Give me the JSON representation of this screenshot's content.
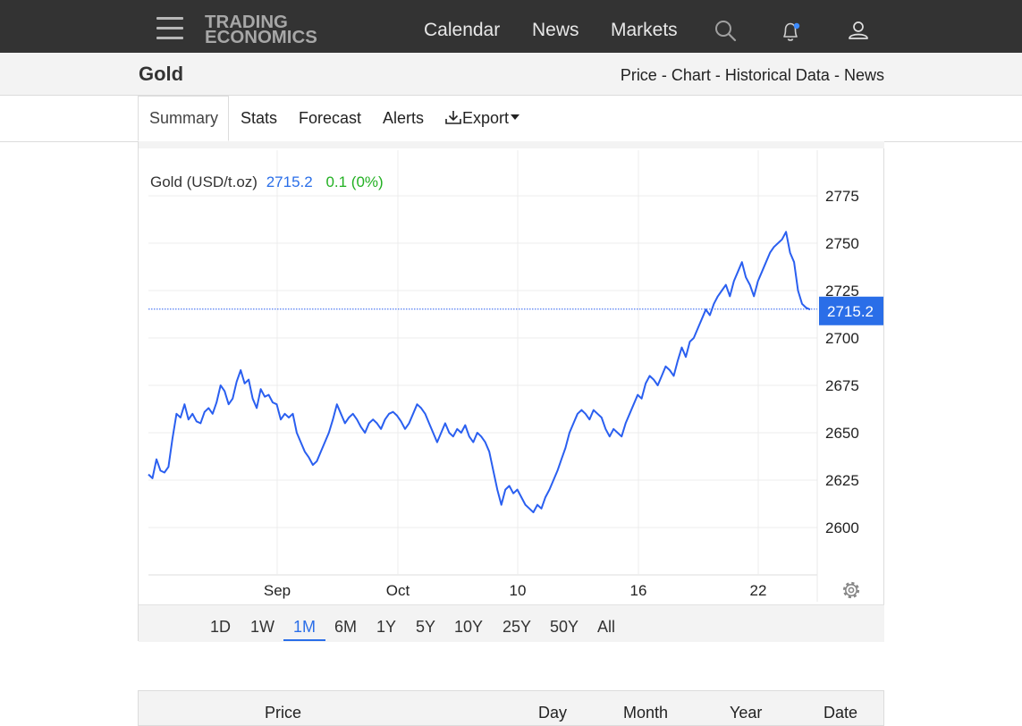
{
  "nav": {
    "logo_line1": "TRADING",
    "logo_line2": "ECONOMICS",
    "links": [
      "Calendar",
      "News",
      "Markets"
    ]
  },
  "titlebar": {
    "title": "Gold",
    "crumbs": [
      "Price",
      "Chart",
      "Historical Data",
      "News"
    ],
    "separator": "-"
  },
  "tabs": [
    "Summary",
    "Stats",
    "Forecast",
    "Alerts",
    "Export"
  ],
  "chart_header": {
    "instrument": "Gold (USD/t.oz)",
    "last": "2715.2",
    "change": "0.1 (0%)"
  },
  "ranges": [
    "1D",
    "1W",
    "1M",
    "6M",
    "1Y",
    "5Y",
    "10Y",
    "25Y",
    "50Y",
    "All"
  ],
  "active_range": "1M",
  "table_header": [
    "Price",
    "Day",
    "Month",
    "Year",
    "Date"
  ],
  "colors": {
    "line": "#2a5ff0",
    "positive": "#22b022",
    "accent": "#2a6ee8"
  },
  "chart_data": {
    "type": "line",
    "ylim": [
      2575,
      2800
    ],
    "yticks": [
      "2600",
      "2625",
      "2650",
      "2675",
      "2700",
      "2725",
      "2750",
      "2775"
    ],
    "xticks": [
      "Sep",
      "Oct",
      "10",
      "16",
      "22"
    ],
    "last_value": 2715.2,
    "last_label": "2715.2",
    "series": [
      {
        "values": [
          2628,
          2626,
          2636,
          2630,
          2629,
          2632,
          2647,
          2660,
          2658,
          2665,
          2657,
          2660,
          2656,
          2655,
          2661,
          2663,
          2660,
          2666,
          2675,
          2672,
          2665,
          2668,
          2677,
          2683,
          2676,
          2678,
          2668,
          2663,
          2673,
          2669,
          2670,
          2666,
          2665,
          2657,
          2660,
          2658,
          2660,
          2650,
          2645,
          2640,
          2637,
          2633,
          2635,
          2640,
          2645,
          2650,
          2657,
          2665,
          2660,
          2655,
          2658,
          2660,
          2657,
          2653,
          2650,
          2655,
          2657,
          2655,
          2652,
          2657,
          2660,
          2661,
          2659,
          2656,
          2652,
          2655,
          2660,
          2665,
          2663,
          2660,
          2655,
          2650,
          2645,
          2650,
          2655,
          2650,
          2648,
          2652,
          2650,
          2654,
          2648,
          2645,
          2650,
          2648,
          2645,
          2640,
          2630,
          2620,
          2612,
          2620,
          2622,
          2618,
          2620,
          2616,
          2612,
          2610,
          2608,
          2612,
          2610,
          2616,
          2620,
          2625,
          2630,
          2636,
          2642,
          2650,
          2655,
          2660,
          2662,
          2660,
          2657,
          2662,
          2660,
          2658,
          2652,
          2648,
          2652,
          2650,
          2648,
          2655,
          2660,
          2665,
          2670,
          2668,
          2676,
          2680,
          2678,
          2675,
          2680,
          2685,
          2683,
          2680,
          2688,
          2695,
          2690,
          2698,
          2700,
          2705,
          2710,
          2715,
          2712,
          2718,
          2722,
          2725,
          2728,
          2722,
          2730,
          2735,
          2740,
          2732,
          2728,
          2722,
          2730,
          2735,
          2740,
          2745,
          2748,
          2750,
          2752,
          2756,
          2745,
          2740,
          2725,
          2718,
          2716,
          2715
        ]
      }
    ]
  }
}
